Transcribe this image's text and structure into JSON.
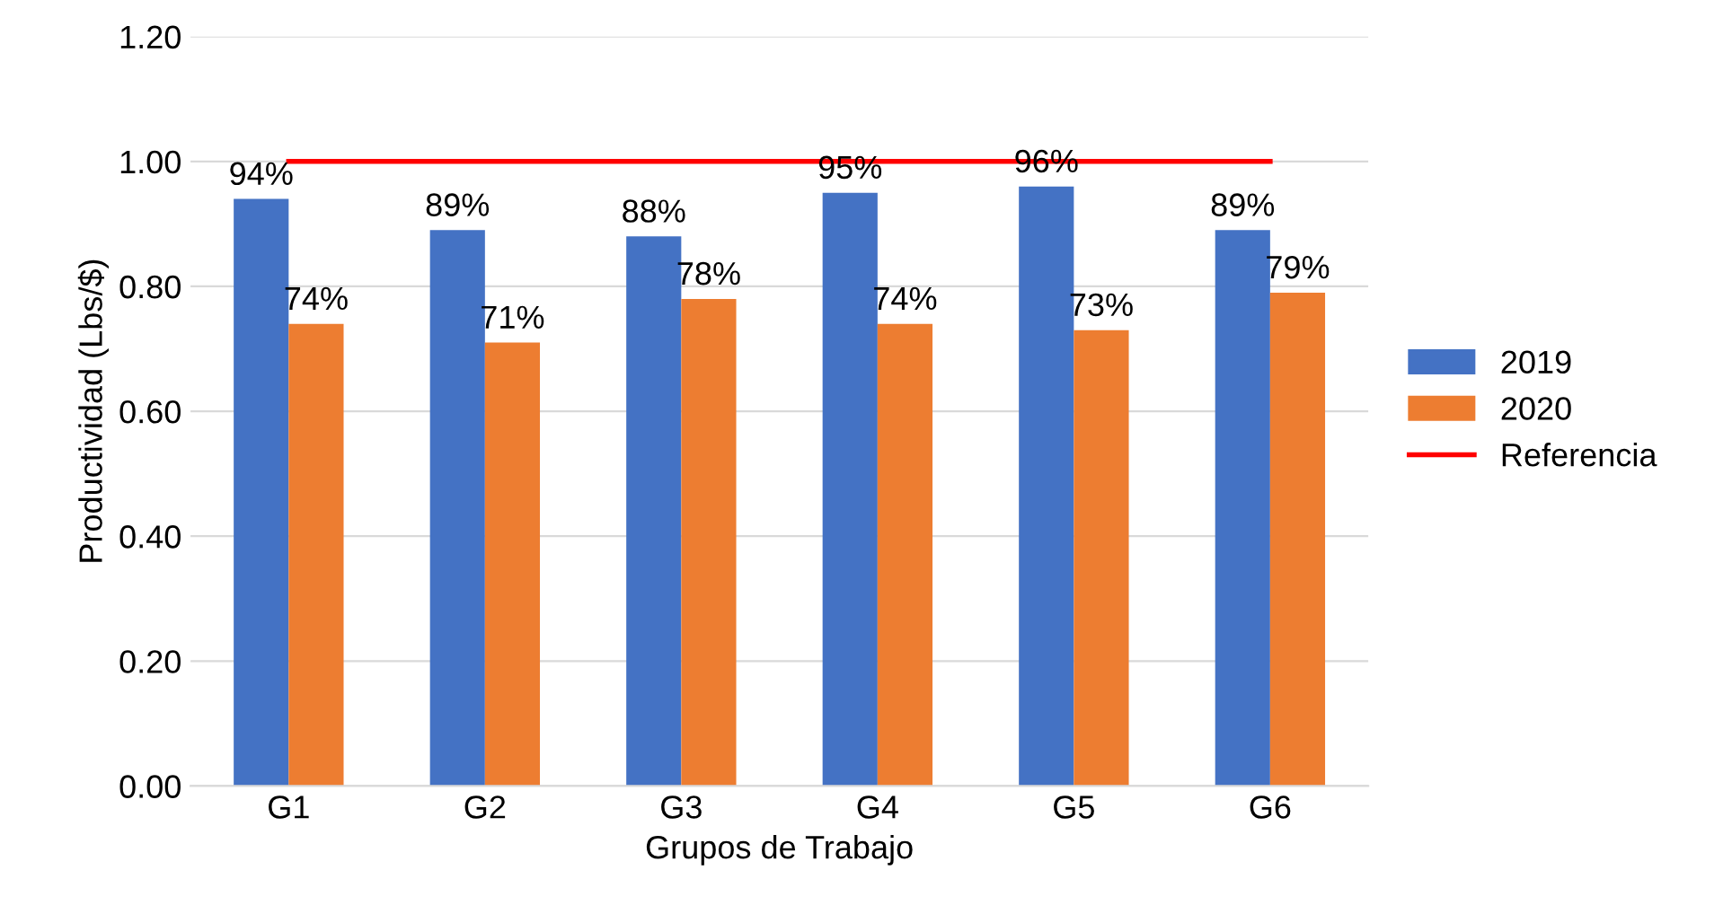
{
  "chart_data": {
    "type": "bar",
    "xlabel": "Grupos de Trabajo",
    "ylabel": "Productividad (Lbs/$)",
    "categories": [
      "G1",
      "G2",
      "G3",
      "G4",
      "G5",
      "G6"
    ],
    "series": [
      {
        "name": "2019",
        "color": "#4472c4",
        "values": [
          0.94,
          0.89,
          0.88,
          0.95,
          0.96,
          0.89
        ],
        "value_labels": [
          "94%",
          "89%",
          "88%",
          "95%",
          "96%",
          "89%"
        ]
      },
      {
        "name": "2020",
        "color": "#ed7d31",
        "values": [
          0.74,
          0.71,
          0.78,
          0.74,
          0.73,
          0.79
        ],
        "value_labels": [
          "74%",
          "71%",
          "78%",
          "74%",
          "73%",
          "79%"
        ]
      },
      {
        "name": "Referencia",
        "type": "line",
        "color": "#ff0000",
        "values": [
          1.0,
          1.0,
          1.0,
          1.0,
          1.0,
          1.0
        ]
      }
    ],
    "ylim": [
      0,
      1.2
    ],
    "yticks": [
      {
        "value": 0,
        "label": "0.00"
      },
      {
        "value": 0.2,
        "label": "0.20"
      },
      {
        "value": 0.4,
        "label": "0.40"
      },
      {
        "value": 0.6,
        "label": "0.60"
      },
      {
        "value": 0.8,
        "label": "0.80"
      },
      {
        "value": 1.0,
        "label": "1.00"
      },
      {
        "value": 1.2,
        "label": "1.20"
      }
    ],
    "grid": "y",
    "legend": "right"
  }
}
